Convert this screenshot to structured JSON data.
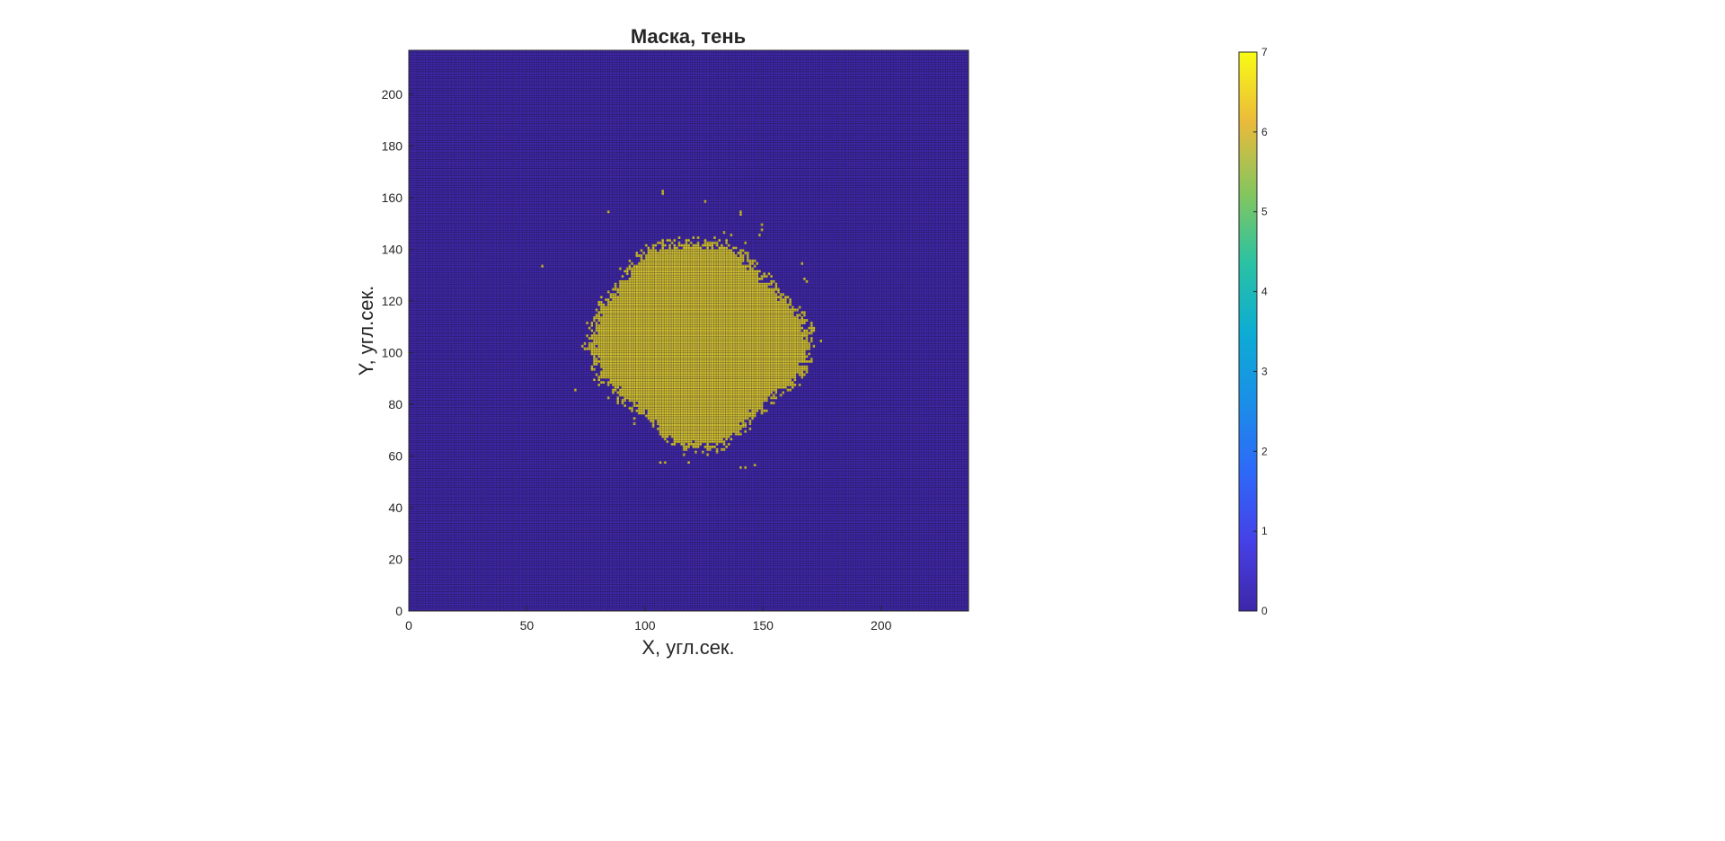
{
  "chart_data": {
    "type": "heatmap",
    "title": "Маска, тень",
    "xlabel": "X, угл.сек.",
    "ylabel": "Y, угл.сек.",
    "xlim": [
      0,
      237
    ],
    "ylim": [
      0,
      217
    ],
    "x_ticks": [
      0,
      50,
      100,
      150,
      200
    ],
    "y_ticks": [
      0,
      20,
      40,
      60,
      80,
      100,
      120,
      140,
      160,
      180,
      200
    ],
    "grid": "on",
    "colormap": "parula",
    "background_value": 0,
    "mask_value": 5.5,
    "background_color": "#3e26a8",
    "mask_color": "#d3c22f",
    "gridline_color": "#111111",
    "colorbar": {
      "limits": [
        0,
        7
      ],
      "ticks": [
        0,
        1,
        2,
        3,
        4,
        5,
        6,
        7
      ],
      "location": "right"
    },
    "blob": {
      "center_x": 122,
      "center_y": 104,
      "outline_deg_radius": [
        [
          0,
          48
        ],
        [
          15,
          44
        ],
        [
          30,
          38
        ],
        [
          45,
          37
        ],
        [
          60,
          38
        ],
        [
          75,
          39
        ],
        [
          90,
          38
        ],
        [
          105,
          39
        ],
        [
          120,
          42
        ],
        [
          135,
          40
        ],
        [
          150,
          40
        ],
        [
          165,
          44
        ],
        [
          180,
          46
        ],
        [
          195,
          44
        ],
        [
          210,
          40
        ],
        [
          225,
          38
        ],
        [
          240,
          37
        ],
        [
          255,
          41
        ],
        [
          270,
          41
        ],
        [
          285,
          42
        ],
        [
          300,
          38
        ],
        [
          315,
          37
        ],
        [
          330,
          40
        ],
        [
          345,
          46
        ]
      ]
    },
    "outlier_cells": [
      [
        107,
        161
      ],
      [
        107,
        162
      ],
      [
        125,
        158
      ],
      [
        140,
        154
      ],
      [
        140,
        153
      ],
      [
        149,
        149
      ],
      [
        149,
        147
      ],
      [
        148,
        145
      ],
      [
        84,
        154
      ],
      [
        56,
        133
      ],
      [
        136,
        145
      ],
      [
        166,
        134
      ],
      [
        167,
        128
      ],
      [
        168,
        127
      ],
      [
        70,
        85
      ],
      [
        106,
        57
      ],
      [
        108,
        57
      ],
      [
        140,
        55
      ],
      [
        142,
        55
      ],
      [
        146,
        56
      ],
      [
        118,
        57
      ]
    ]
  }
}
